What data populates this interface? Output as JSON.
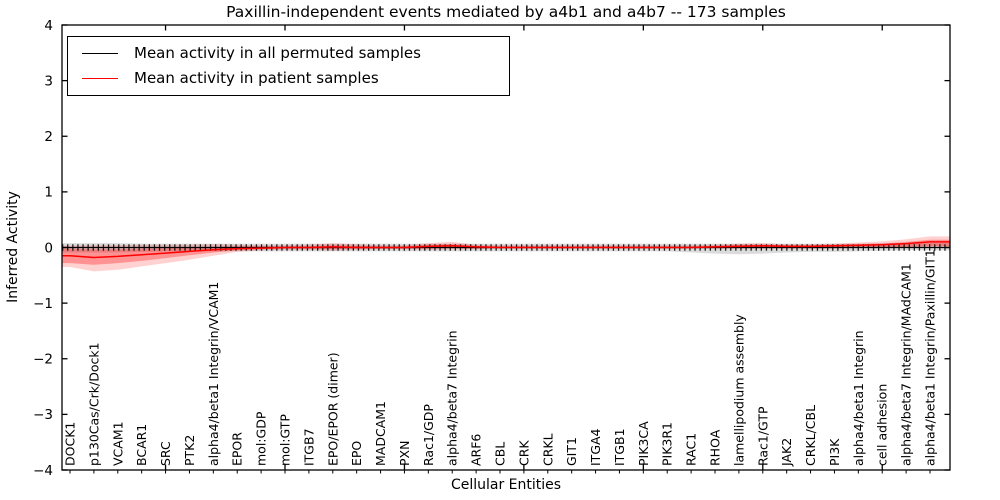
{
  "figure": {
    "title": "Paxillin-independent events mediated by a4b1 and a4b7 -- 173 samples",
    "xlabel": "Cellular Entities",
    "ylabel": "Inferred Activity"
  },
  "chart_data": {
    "type": "line",
    "title": "Paxillin-independent events mediated by a4b1 and a4b7 -- 173 samples",
    "xlabel": "Cellular Entities",
    "ylabel": "Inferred Activity",
    "ylim": [
      -4,
      4
    ],
    "yticks": [
      4,
      3,
      2,
      1,
      0,
      -1,
      -2,
      -3,
      -4
    ],
    "x_major_tick_indices": [
      4,
      9,
      14,
      19,
      24,
      29,
      34
    ],
    "grid": false,
    "legend_position": "upper left",
    "zero_reference_line": true,
    "categories": [
      "DOCK1",
      "p130Cas/Crk/Dock1",
      "VCAM1",
      "BCAR1",
      "SRC",
      "PTK2",
      "alpha4/beta1 Integrin/VCAM1",
      "EPOR",
      "mol:GDP",
      "mol:GTP",
      "ITGB7",
      "EPO/EPOR (dimer)",
      "EPO",
      "MADCAM1",
      "PXN",
      "Rac1/GDP",
      "alpha4/beta7 Integrin",
      "ARF6",
      "CBL",
      "CRK",
      "CRKL",
      "GIT1",
      "ITGA4",
      "ITGB1",
      "PIK3CA",
      "PIK3R1",
      "RAC1",
      "RHOA",
      "lamellipodium assembly",
      "Rac1/GTP",
      "JAK2",
      "CRKL/CBL",
      "PI3K",
      "alpha4/beta1 Integrin",
      "cell adhesion",
      "alpha4/beta7 Integrin/MAdCAM1",
      "alpha4/beta1 Integrin/Paxillin/GIT1"
    ],
    "series": [
      {
        "name": "Mean activity in all permuted samples",
        "color": "#000000",
        "values": [
          0,
          0,
          0,
          0,
          0,
          0,
          0,
          0,
          0,
          0,
          0,
          0,
          0,
          0,
          0,
          0,
          0,
          0,
          0,
          0,
          0,
          0,
          0,
          0,
          0,
          0,
          0,
          0,
          0,
          0,
          0,
          0,
          0,
          0,
          0,
          0,
          0
        ],
        "band_lower": [
          -0.09,
          -0.09,
          -0.09,
          -0.08,
          -0.07,
          -0.07,
          -0.07,
          -0.07,
          -0.07,
          -0.07,
          -0.07,
          -0.07,
          -0.07,
          -0.07,
          -0.07,
          -0.07,
          -0.07,
          -0.07,
          -0.07,
          -0.07,
          -0.07,
          -0.07,
          -0.07,
          -0.07,
          -0.07,
          -0.07,
          -0.09,
          -0.11,
          -0.12,
          -0.11,
          -0.09,
          -0.08,
          -0.08,
          -0.07,
          -0.06,
          -0.05,
          -0.05
        ],
        "band_upper": [
          0.08,
          0.08,
          0.08,
          0.07,
          0.07,
          0.07,
          0.07,
          0.07,
          0.07,
          0.07,
          0.07,
          0.07,
          0.07,
          0.07,
          0.07,
          0.07,
          0.07,
          0.07,
          0.07,
          0.07,
          0.07,
          0.07,
          0.07,
          0.07,
          0.07,
          0.07,
          0.07,
          0.07,
          0.07,
          0.07,
          0.07,
          0.07,
          0.07,
          0.07,
          0.08,
          0.08,
          0.08
        ]
      },
      {
        "name": "Mean activity in patient samples",
        "color": "#ff0000",
        "values": [
          -0.15,
          -0.18,
          -0.16,
          -0.13,
          -0.1,
          -0.07,
          -0.04,
          -0.02,
          -0.01,
          0,
          0,
          0.01,
          0,
          0,
          0,
          0.02,
          0.03,
          0.01,
          0,
          0,
          0,
          0,
          0,
          0,
          0,
          0,
          0,
          0.01,
          0.02,
          0.03,
          0.02,
          0.02,
          0.03,
          0.04,
          0.05,
          0.07,
          0.1
        ],
        "band_outer_lower": [
          -0.35,
          -0.43,
          -0.4,
          -0.34,
          -0.28,
          -0.22,
          -0.15,
          -0.08,
          -0.05,
          -0.04,
          -0.04,
          -0.06,
          -0.04,
          -0.03,
          -0.03,
          -0.04,
          -0.03,
          -0.03,
          -0.02,
          -0.02,
          -0.02,
          -0.02,
          -0.02,
          -0.02,
          -0.02,
          -0.02,
          -0.02,
          -0.02,
          -0.02,
          -0.02,
          -0.02,
          -0.02,
          -0.02,
          -0.01,
          -0.01,
          0.0,
          0.02
        ],
        "band_outer_upper": [
          0.03,
          0.04,
          0.04,
          0.05,
          0.05,
          0.05,
          0.06,
          0.05,
          0.04,
          0.04,
          0.05,
          0.08,
          0.06,
          0.04,
          0.04,
          0.08,
          0.1,
          0.05,
          0.04,
          0.04,
          0.04,
          0.04,
          0.04,
          0.04,
          0.04,
          0.04,
          0.04,
          0.05,
          0.07,
          0.08,
          0.06,
          0.06,
          0.07,
          0.09,
          0.11,
          0.15,
          0.2
        ],
        "band_inner_lower": [
          -0.28,
          -0.31,
          -0.28,
          -0.24,
          -0.19,
          -0.14,
          -0.09,
          -0.05,
          -0.03,
          -0.02,
          -0.02,
          -0.03,
          -0.02,
          -0.02,
          -0.02,
          -0.02,
          -0.01,
          -0.02,
          -0.01,
          -0.01,
          -0.01,
          -0.01,
          -0.01,
          -0.01,
          -0.01,
          -0.01,
          -0.01,
          -0.01,
          -0.01,
          -0.01,
          -0.01,
          -0.01,
          -0.01,
          0.0,
          0.0,
          0.01,
          0.02
        ],
        "band_inner_upper": [
          -0.02,
          -0.03,
          -0.03,
          -0.02,
          -0.01,
          0.0,
          0.01,
          0.02,
          0.02,
          0.02,
          0.02,
          0.04,
          0.03,
          0.02,
          0.02,
          0.05,
          0.06,
          0.03,
          0.02,
          0.02,
          0.02,
          0.02,
          0.02,
          0.02,
          0.02,
          0.02,
          0.02,
          0.03,
          0.05,
          0.05,
          0.04,
          0.04,
          0.05,
          0.06,
          0.07,
          0.1,
          0.14
        ]
      }
    ]
  }
}
